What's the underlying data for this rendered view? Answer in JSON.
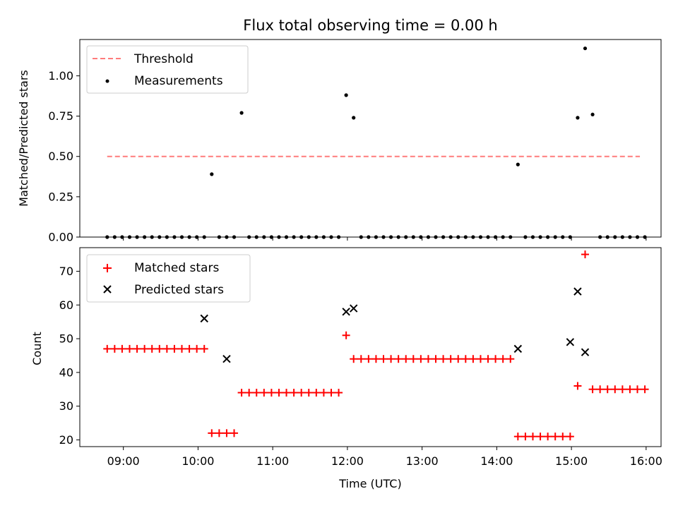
{
  "chart_data": [
    {
      "type": "scatter",
      "title": "Flux total observing time = 0.00 h",
      "xlabel": "",
      "ylabel": "Matched/Predicted stars",
      "ylim": [
        0,
        1.225
      ],
      "yticks": [
        "0.00",
        "0.25",
        "0.50",
        "0.75",
        "1.00"
      ],
      "grid": false,
      "legend_placement": "top-left",
      "threshold": {
        "name": "Threshold",
        "value": 0.5,
        "x_range": [
          "08:47",
          "15:55"
        ],
        "color": "#ff7b7b"
      },
      "series": [
        {
          "name": "Measurements",
          "color": "#000000",
          "x": [
            "08:47",
            "08:53",
            "08:59",
            "09:05",
            "09:11",
            "09:17",
            "09:23",
            "09:29",
            "09:35",
            "09:41",
            "09:47",
            "09:53",
            "09:59",
            "10:05",
            "10:11",
            "10:17",
            "10:23",
            "10:29",
            "10:35",
            "10:41",
            "10:47",
            "10:53",
            "10:59",
            "11:05",
            "11:11",
            "11:17",
            "11:23",
            "11:29",
            "11:35",
            "11:41",
            "11:47",
            "11:53",
            "11:59",
            "12:05",
            "12:11",
            "12:17",
            "12:23",
            "12:29",
            "12:35",
            "12:41",
            "12:47",
            "12:53",
            "12:59",
            "13:05",
            "13:11",
            "13:17",
            "13:23",
            "13:29",
            "13:35",
            "13:41",
            "13:47",
            "13:53",
            "13:59",
            "14:05",
            "14:11",
            "14:17",
            "14:23",
            "14:29",
            "14:35",
            "14:41",
            "14:47",
            "14:53",
            "14:59",
            "15:05",
            "15:11",
            "15:17",
            "15:23",
            "15:29",
            "15:35",
            "15:41",
            "15:47",
            "15:53",
            "15:59"
          ],
          "y": [
            0,
            0,
            0,
            0,
            0,
            0,
            0,
            0,
            0,
            0,
            0,
            0,
            0,
            0,
            0.39,
            0,
            0,
            0,
            0.77,
            0,
            0,
            0,
            0,
            0,
            0,
            0,
            0,
            0,
            0,
            0,
            0,
            0,
            0.88,
            0.74,
            0,
            0,
            0,
            0,
            0,
            0,
            0,
            0,
            0,
            0,
            0,
            0,
            0,
            0,
            0,
            0,
            0,
            0,
            0,
            0,
            0,
            0.45,
            0,
            0,
            0,
            0,
            0,
            0,
            0,
            0.74,
            1.17,
            0.76,
            0,
            0,
            0,
            0,
            0,
            0,
            0
          ]
        }
      ],
      "xlim": [
        "08:25",
        "16:12"
      ]
    },
    {
      "type": "scatter",
      "title": "",
      "xlabel": "Time (UTC)",
      "ylabel": "Count",
      "ylim": [
        18,
        77
      ],
      "yticks": [
        20,
        30,
        40,
        50,
        60,
        70
      ],
      "xticks": [
        "09:00",
        "10:00",
        "11:00",
        "12:00",
        "13:00",
        "14:00",
        "15:00",
        "16:00"
      ],
      "grid": false,
      "legend_placement": "top-left",
      "xlim": [
        "08:25",
        "16:12"
      ],
      "series": [
        {
          "name": "Matched stars",
          "marker": "plus",
          "color": "#ff0000",
          "x": [
            "08:47",
            "08:53",
            "08:59",
            "09:05",
            "09:11",
            "09:17",
            "09:23",
            "09:29",
            "09:35",
            "09:41",
            "09:47",
            "09:53",
            "09:59",
            "10:05",
            "10:11",
            "10:17",
            "10:23",
            "10:29",
            "10:35",
            "10:41",
            "10:47",
            "10:53",
            "10:59",
            "11:05",
            "11:11",
            "11:17",
            "11:23",
            "11:29",
            "11:35",
            "11:41",
            "11:47",
            "11:53",
            "11:59",
            "12:05",
            "12:11",
            "12:17",
            "12:23",
            "12:29",
            "12:35",
            "12:41",
            "12:47",
            "12:53",
            "12:59",
            "13:05",
            "13:11",
            "13:17",
            "13:23",
            "13:29",
            "13:35",
            "13:41",
            "13:47",
            "13:53",
            "13:59",
            "14:05",
            "14:11",
            "14:17",
            "14:23",
            "14:29",
            "14:35",
            "14:41",
            "14:47",
            "14:53",
            "14:59",
            "15:05",
            "15:11",
            "15:17",
            "15:23",
            "15:29",
            "15:35",
            "15:41",
            "15:47",
            "15:53",
            "15:59"
          ],
          "y": [
            47,
            47,
            47,
            47,
            47,
            47,
            47,
            47,
            47,
            47,
            47,
            47,
            47,
            47,
            22,
            22,
            22,
            22,
            34,
            34,
            34,
            34,
            34,
            34,
            34,
            34,
            34,
            34,
            34,
            34,
            34,
            34,
            51,
            44,
            44,
            44,
            44,
            44,
            44,
            44,
            44,
            44,
            44,
            44,
            44,
            44,
            44,
            44,
            44,
            44,
            44,
            44,
            44,
            44,
            44,
            21,
            21,
            21,
            21,
            21,
            21,
            21,
            21,
            36,
            75,
            35,
            35,
            35,
            35,
            35,
            35,
            35,
            35
          ]
        },
        {
          "name": "Predicted stars",
          "marker": "x",
          "color": "#000000",
          "x": [
            "10:05",
            "10:23",
            "11:59",
            "12:05",
            "14:17",
            "14:59",
            "15:05",
            "15:11"
          ],
          "y": [
            56,
            44,
            58,
            59,
            47,
            49,
            64,
            46
          ]
        }
      ]
    }
  ]
}
